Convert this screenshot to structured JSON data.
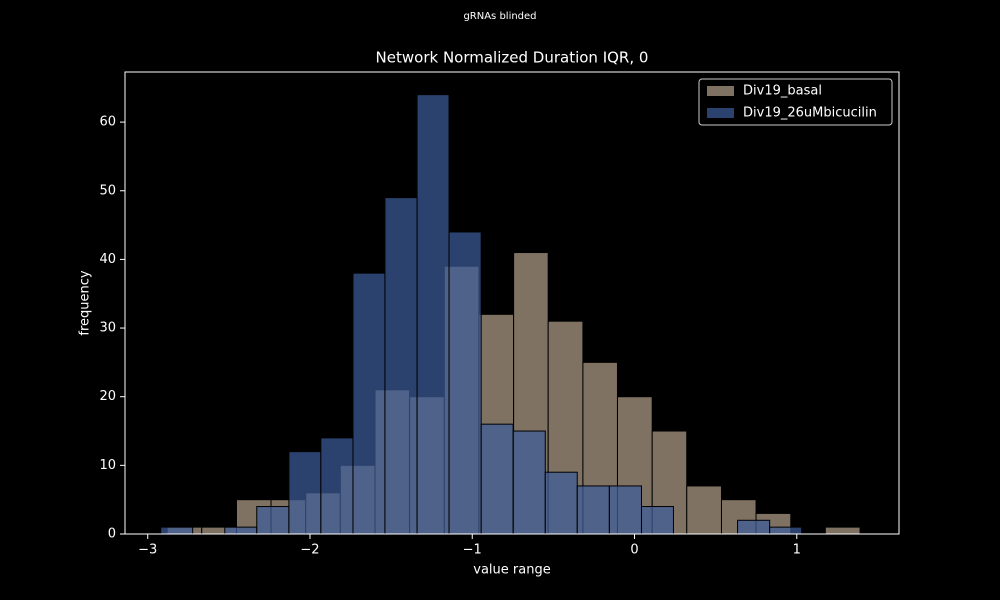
{
  "chart_data": {
    "type": "histogram",
    "suptitle": "gRNAs blinded",
    "title": "Network Normalized Duration IQR, 0",
    "x_label": "value range",
    "y_label": "frequency",
    "xlim": [
      -3.14,
      1.63
    ],
    "ylim": [
      0,
      67.3
    ],
    "xticks": [
      {
        "value": -3,
        "label": "−3"
      },
      {
        "value": -2,
        "label": "−2"
      },
      {
        "value": -1,
        "label": "−1"
      },
      0,
      1
    ],
    "yticks": [
      0,
      10,
      20,
      30,
      40,
      50,
      60
    ],
    "legend": "upper right",
    "series": [
      {
        "name": "Div19_basal",
        "color": "#7f7262",
        "bins": [
          -2.88,
          -2.667,
          -2.453,
          -2.24,
          -2.026,
          -1.813,
          -1.599,
          -1.386,
          -1.172,
          -0.959,
          -0.745,
          -0.532,
          -0.318,
          -0.105,
          0.109,
          0.322,
          0.536,
          0.749,
          0.963,
          1.176,
          1.39
        ],
        "values": [
          1,
          1,
          5,
          5,
          6,
          10,
          21,
          20,
          39,
          32,
          41,
          31,
          25,
          20,
          15,
          7,
          5,
          3,
          0,
          1
        ]
      },
      {
        "name": "Div19_26uMbicucilin",
        "color": "#3d5c99",
        "bins": [
          -2.92,
          -2.723,
          -2.525,
          -2.328,
          -2.13,
          -1.933,
          -1.735,
          -1.538,
          -1.34,
          -1.143,
          -0.945,
          -0.748,
          -0.55,
          -0.353,
          -0.155,
          0.043,
          0.24,
          0.438,
          0.635,
          0.833,
          1.03
        ],
        "values": [
          1,
          0,
          1,
          4,
          12,
          14,
          38,
          49,
          64,
          44,
          16,
          15,
          9,
          7,
          7,
          4,
          0,
          0,
          2,
          1
        ]
      }
    ]
  }
}
